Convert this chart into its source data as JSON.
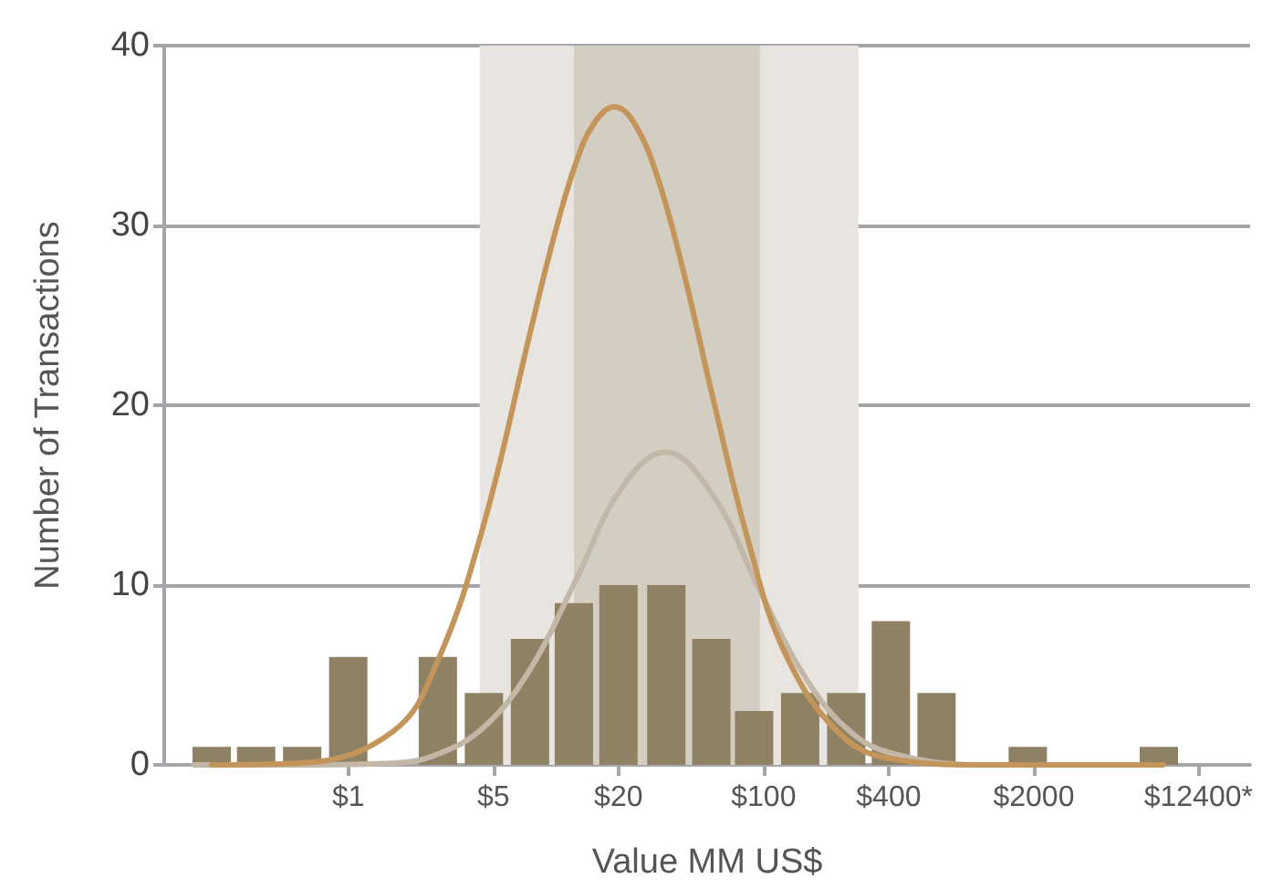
{
  "chart_data": {
    "type": "bar",
    "xlabel": "Value MM US$",
    "ylabel": "Number of Transactions",
    "log": "x",
    "xlim": [
      0.13,
      22000
    ],
    "xticks": [
      {
        "value": 1,
        "label": "$1"
      },
      {
        "value": 5,
        "label": "$5"
      },
      {
        "value": 20,
        "label": "$20"
      },
      {
        "value": 100,
        "label": "$100"
      },
      {
        "value": 400,
        "label": "$400"
      },
      {
        "value": 2000,
        "label": "$2000"
      },
      {
        "value": 12400,
        "label": "$12400*"
      }
    ],
    "ylim": [
      0,
      40
    ],
    "yticks": [
      0,
      10,
      20,
      30,
      40
    ],
    "grid": "y",
    "marker": "none",
    "line_style": "solid",
    "bands": [
      {
        "axis": "x",
        "from": 4.3,
        "to": 286,
        "color": "#e8e4df"
      },
      {
        "axis": "x",
        "from": 12.2,
        "to": 96,
        "color": "#d4cdc2"
      }
    ],
    "series": [
      {
        "color": "#8f8264",
        "x": [
          0.22,
          0.36,
          0.6,
          1,
          2.7,
          4.5,
          7.5,
          12.2,
          20,
          34,
          56,
          90,
          150,
          250,
          410,
          680,
          1870,
          8000
        ],
        "values": [
          1,
          1,
          1,
          6,
          6,
          4,
          7,
          9,
          10,
          10,
          7,
          3,
          4,
          4,
          8,
          4,
          1,
          1
        ]
      },
      {
        "type": "line",
        "color": "#c3b8a8",
        "x": [
          0.18,
          0.6,
          1.66,
          2.7,
          4.5,
          7.5,
          12.5,
          20.7,
          33.6,
          57,
          94,
          156,
          258,
          428,
          1175,
          8340
        ],
        "values": [
          0,
          0,
          0.1,
          0.6,
          2.1,
          5.3,
          10.3,
          15.4,
          17.4,
          15,
          9.9,
          5,
          1.9,
          0.6,
          0,
          0
        ]
      },
      {
        "type": "line",
        "color": "#c4955a",
        "x": [
          0.22,
          0.6,
          1.66,
          2.7,
          4.5,
          7.5,
          9.8,
          12.5,
          15.3,
          19.1,
          23.8,
          31,
          42,
          57,
          85,
          127,
          234,
          428,
          1175,
          3230,
          8340
        ],
        "values": [
          0,
          0.1,
          1.9,
          5.8,
          13.4,
          24,
          29.4,
          33.5,
          35.7,
          36.6,
          35.7,
          32.6,
          27,
          20.4,
          12.3,
          6.2,
          1.7,
          0.3,
          0,
          0,
          0
        ]
      }
    ]
  }
}
